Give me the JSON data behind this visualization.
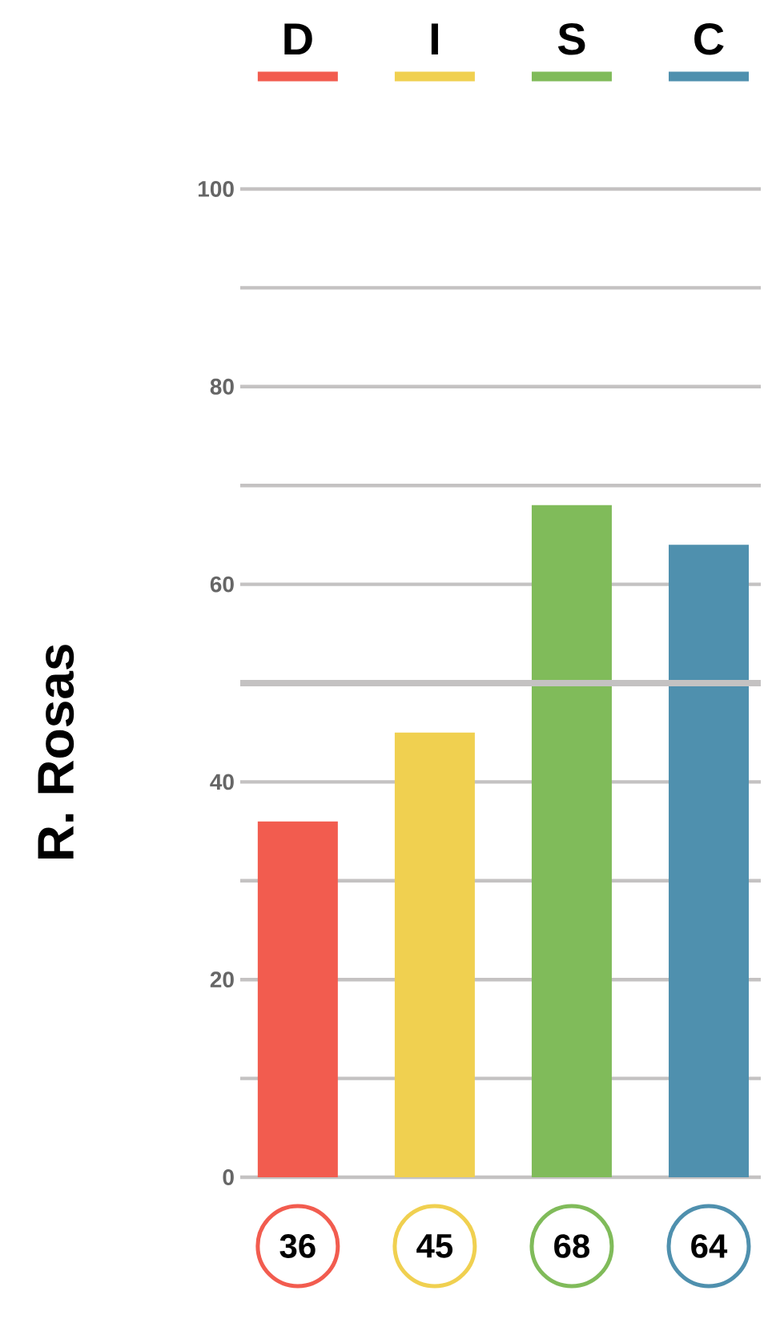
{
  "chart_data": {
    "type": "bar",
    "ylabel": "R. Rosas",
    "categories": [
      "D",
      "I",
      "S",
      "C"
    ],
    "values": [
      36,
      45,
      68,
      64
    ],
    "colors": [
      "#f25c4f",
      "#f0d050",
      "#80bb5a",
      "#4f90ae"
    ],
    "ylim": [
      0,
      100
    ],
    "yticks": [
      0,
      {
        "value": 10,
        "label": null
      },
      20,
      {
        "value": 30,
        "label": null
      },
      40,
      {
        "value": 50,
        "label": null
      },
      60,
      {
        "value": 70,
        "label": null
      },
      80,
      {
        "value": 90,
        "label": null
      },
      100
    ],
    "grid": "y",
    "ref_lines": [
      {
        "axis": "y",
        "value": 50,
        "color": "#c4c2c2"
      }
    ],
    "data_labels": true
  }
}
